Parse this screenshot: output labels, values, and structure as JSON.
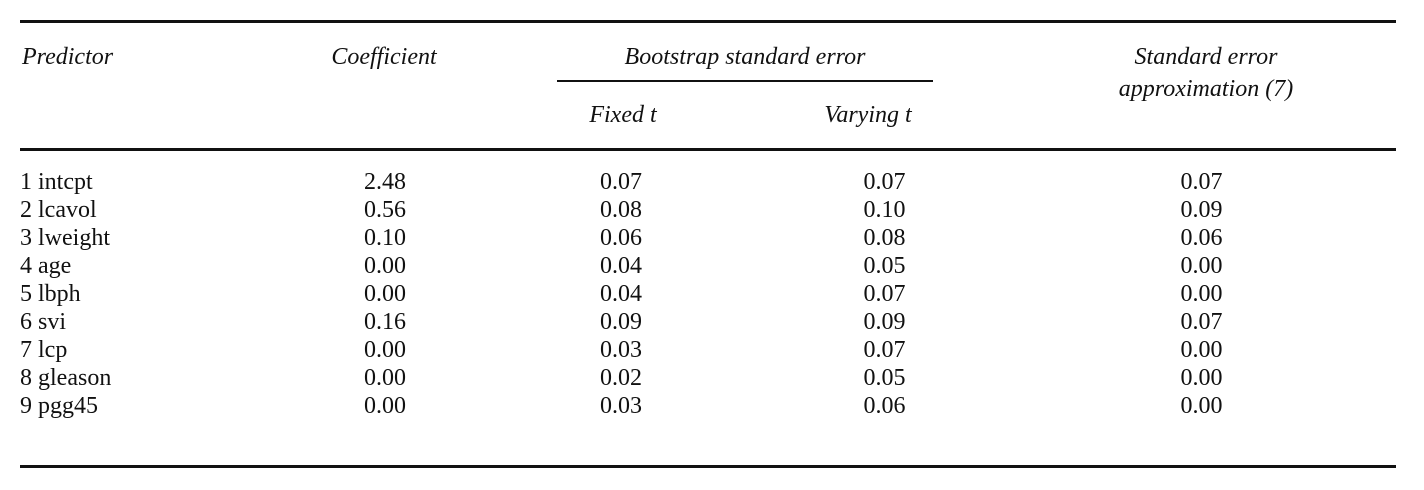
{
  "table": {
    "headers": {
      "predictor": "Predictor",
      "coefficient": "Coefficient",
      "bootstrap_group": "Bootstrap standard error",
      "fixed_t": "Fixed t",
      "varying_t": "Varying t",
      "approx_line1": "Standard error",
      "approx_line2": "approximation (7)"
    },
    "rows": [
      {
        "predictor": "1 intcpt",
        "coefficient": "2.48",
        "fixed_t": "0.07",
        "varying_t": "0.07",
        "approx": "0.07"
      },
      {
        "predictor": "2 lcavol",
        "coefficient": "0.56",
        "fixed_t": "0.08",
        "varying_t": "0.10",
        "approx": "0.09"
      },
      {
        "predictor": "3 lweight",
        "coefficient": "0.10",
        "fixed_t": "0.06",
        "varying_t": "0.08",
        "approx": "0.06"
      },
      {
        "predictor": "4 age",
        "coefficient": "0.00",
        "fixed_t": "0.04",
        "varying_t": "0.05",
        "approx": "0.00"
      },
      {
        "predictor": "5 lbph",
        "coefficient": "0.00",
        "fixed_t": "0.04",
        "varying_t": "0.07",
        "approx": "0.00"
      },
      {
        "predictor": "6 svi",
        "coefficient": "0.16",
        "fixed_t": "0.09",
        "varying_t": "0.09",
        "approx": "0.07"
      },
      {
        "predictor": "7 lcp",
        "coefficient": "0.00",
        "fixed_t": "0.03",
        "varying_t": "0.07",
        "approx": "0.00"
      },
      {
        "predictor": "8 gleason",
        "coefficient": "0.00",
        "fixed_t": "0.02",
        "varying_t": "0.05",
        "approx": "0.00"
      },
      {
        "predictor": "9 pgg45",
        "coefficient": "0.00",
        "fixed_t": "0.03",
        "varying_t": "0.06",
        "approx": "0.00"
      }
    ]
  }
}
